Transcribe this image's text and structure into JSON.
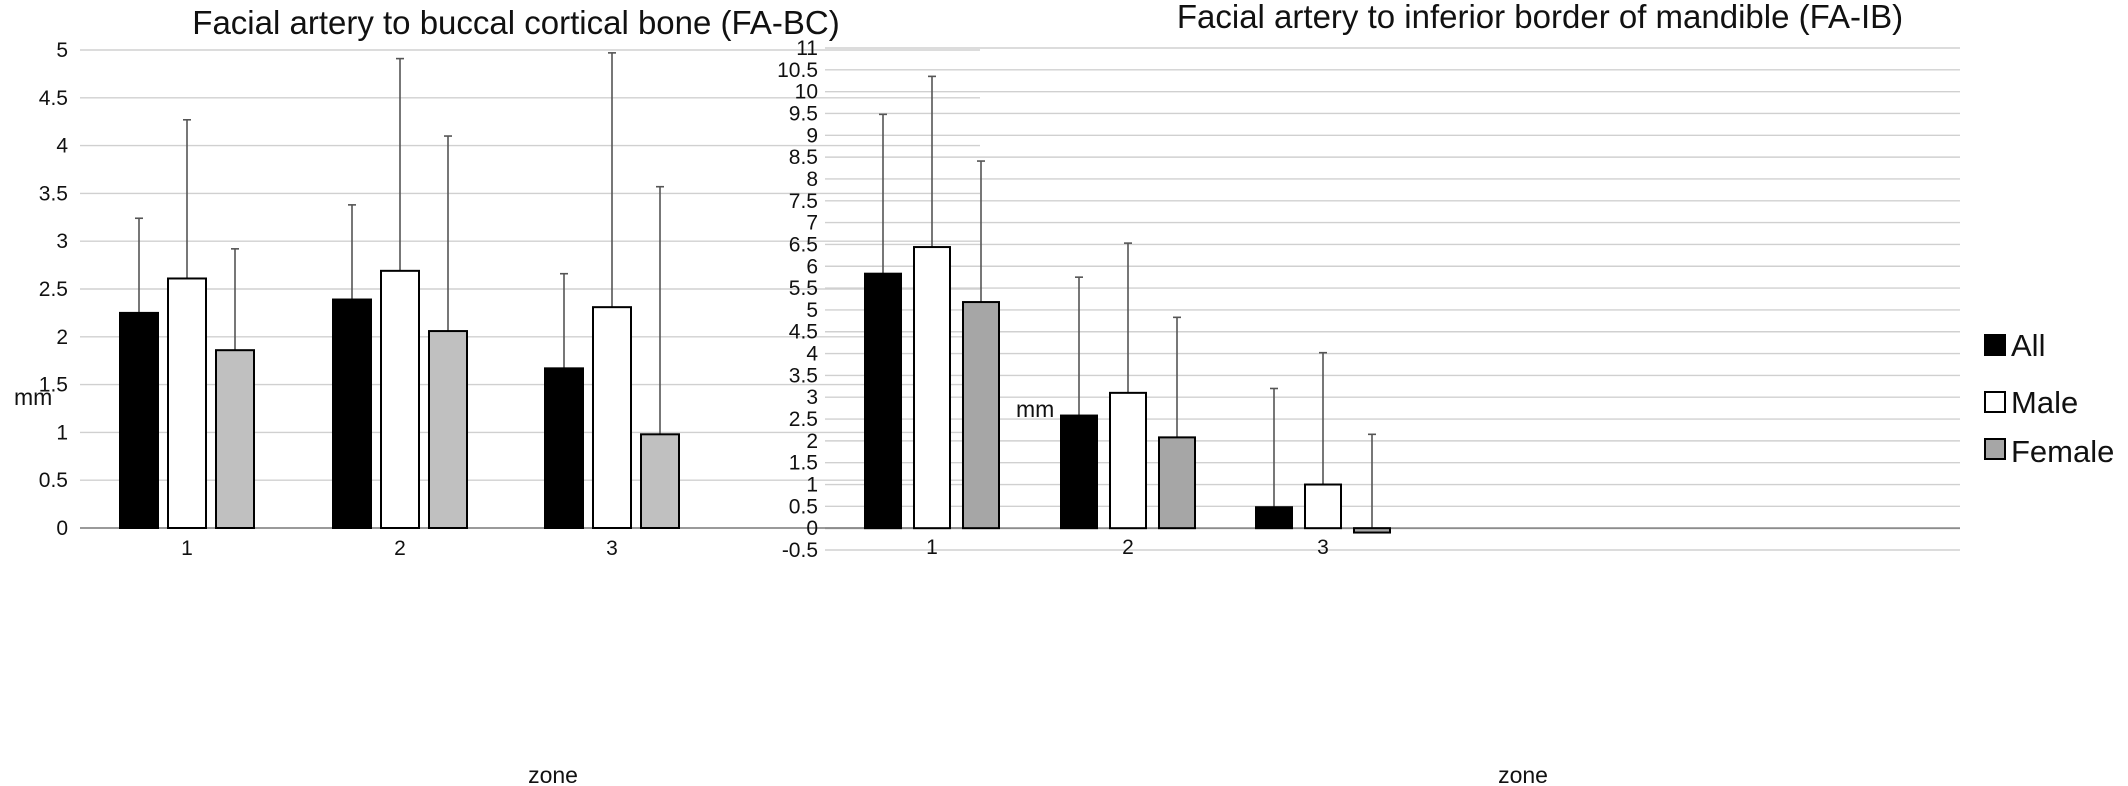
{
  "chart_data": [
    {
      "type": "bar",
      "title": "Facial artery to buccal cortical bone (FA-BC)",
      "xlabel": "zone",
      "ylabel": "mm",
      "categories": [
        "1",
        "2",
        "3"
      ],
      "ylim": [
        0,
        5
      ],
      "yticks": [
        "0",
        "0.5",
        "1",
        "1.5",
        "2",
        "2.5",
        "3",
        "3.5",
        "4",
        "4.5",
        "5"
      ],
      "grid": true,
      "series": [
        {
          "name": "All",
          "color": "#000000",
          "values": [
            2.25,
            2.39,
            1.67
          ],
          "error_upper": [
            3.24,
            3.38,
            2.66
          ]
        },
        {
          "name": "Male",
          "color": "#ffffff",
          "values": [
            2.61,
            2.69,
            2.31
          ],
          "error_upper": [
            4.27,
            4.91,
            4.97
          ]
        },
        {
          "name": "Female",
          "color": "#c0c0c0",
          "values": [
            1.86,
            2.06,
            0.98
          ],
          "error_upper": [
            2.92,
            4.1,
            3.57
          ]
        }
      ]
    },
    {
      "type": "bar",
      "title": "Facial artery to inferior border of mandible (FA-IB)",
      "xlabel": "zone",
      "ylabel": "mm",
      "categories": [
        "1",
        "2",
        "3"
      ],
      "ylim": [
        -0.5,
        11
      ],
      "yticks": [
        "-0.5",
        "0",
        "0.5",
        "1",
        "1.5",
        "2",
        "2.5",
        "3",
        "3.5",
        "4",
        "4.5",
        "5",
        "5.5",
        "6",
        "6.5",
        "7",
        "7.5",
        "8",
        "8.5",
        "9",
        "9.5",
        "10",
        "10.5",
        "11"
      ],
      "grid": true,
      "legend": "right",
      "series": [
        {
          "name": "All",
          "color": "#000000",
          "values": [
            5.83,
            2.58,
            0.48
          ],
          "error_upper": [
            9.48,
            5.75,
            3.2
          ]
        },
        {
          "name": "Male",
          "color": "#ffffff",
          "values": [
            6.44,
            3.1,
            1.0
          ],
          "error_upper": [
            10.35,
            6.53,
            4.02
          ]
        },
        {
          "name": "Female",
          "color": "#a6a6a6",
          "values": [
            5.18,
            2.08,
            -0.1
          ],
          "error_upper": [
            8.41,
            4.83,
            2.15
          ]
        }
      ]
    }
  ]
}
